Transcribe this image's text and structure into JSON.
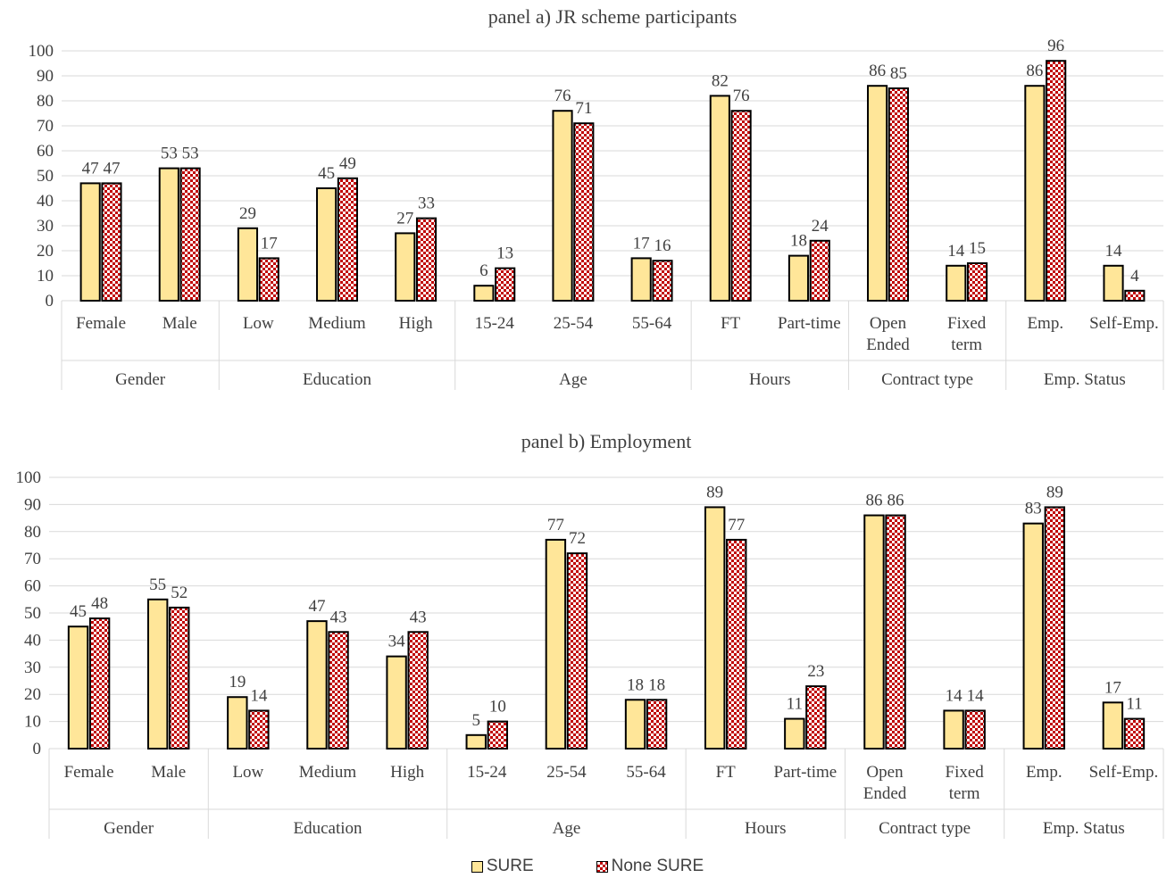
{
  "colors": {
    "sure_fill": "#ffe699",
    "none_sure_fill": "#c00000",
    "bar_stroke": "#000000",
    "grid": "#d9d9d9",
    "text": "#404040"
  },
  "legend": {
    "sure": "SURE",
    "none_sure": "None SURE"
  },
  "chart_data": [
    {
      "type": "bar",
      "title": "panel a) JR scheme participants",
      "xlabel": "",
      "ylabel": "",
      "ylim": [
        0,
        100
      ],
      "yticks": [
        0,
        10,
        20,
        30,
        40,
        50,
        60,
        70,
        80,
        90,
        100
      ],
      "grid": true,
      "groups": [
        {
          "name": "Gender",
          "categories": [
            "Female",
            "Male"
          ]
        },
        {
          "name": "Education",
          "categories": [
            "Low",
            "Medium",
            "High"
          ]
        },
        {
          "name": "Age",
          "categories": [
            "15-24",
            "25-54",
            "55-64"
          ]
        },
        {
          "name": "Hours",
          "categories": [
            "FT",
            "Part-time"
          ]
        },
        {
          "name": "Contract type",
          "categories": [
            "Open Ended",
            "Fixed term"
          ]
        },
        {
          "name": "Emp. Status",
          "categories": [
            "Emp.",
            "Self-Emp."
          ]
        }
      ],
      "categories": [
        "Female",
        "Male",
        "Low",
        "Medium",
        "High",
        "15-24",
        "25-54",
        "55-64",
        "FT",
        "Part-time",
        "Open Ended",
        "Fixed term",
        "Emp.",
        "Self-Emp."
      ],
      "series": [
        {
          "name": "SURE",
          "values": [
            47,
            53,
            29,
            45,
            27,
            6,
            76,
            17,
            82,
            18,
            86,
            14,
            86,
            14
          ]
        },
        {
          "name": "None SURE",
          "values": [
            47,
            53,
            17,
            49,
            33,
            13,
            71,
            16,
            76,
            24,
            85,
            15,
            96,
            4
          ]
        }
      ]
    },
    {
      "type": "bar",
      "title": "panel b) Employment",
      "xlabel": "",
      "ylabel": "",
      "ylim": [
        0,
        100
      ],
      "yticks": [
        0,
        10,
        20,
        30,
        40,
        50,
        60,
        70,
        80,
        90,
        100
      ],
      "grid": true,
      "groups": [
        {
          "name": "Gender",
          "categories": [
            "Female",
            "Male"
          ]
        },
        {
          "name": "Education",
          "categories": [
            "Low",
            "Medium",
            "High"
          ]
        },
        {
          "name": "Age",
          "categories": [
            "15-24",
            "25-54",
            "55-64"
          ]
        },
        {
          "name": "Hours",
          "categories": [
            "FT",
            "Part-time"
          ]
        },
        {
          "name": "Contract type",
          "categories": [
            "Open Ended",
            "Fixed term"
          ]
        },
        {
          "name": "Emp. Status",
          "categories": [
            "Emp.",
            "Self-Emp."
          ]
        }
      ],
      "categories": [
        "Female",
        "Male",
        "Low",
        "Medium",
        "High",
        "15-24",
        "25-54",
        "55-64",
        "FT",
        "Part-time",
        "Open Ended",
        "Fixed term",
        "Emp.",
        "Self-Emp."
      ],
      "series": [
        {
          "name": "SURE",
          "values": [
            45,
            55,
            19,
            47,
            34,
            5,
            77,
            18,
            89,
            11,
            86,
            14,
            83,
            17
          ]
        },
        {
          "name": "None SURE",
          "values": [
            48,
            52,
            14,
            43,
            43,
            10,
            72,
            18,
            77,
            23,
            86,
            14,
            89,
            11
          ]
        }
      ]
    }
  ]
}
